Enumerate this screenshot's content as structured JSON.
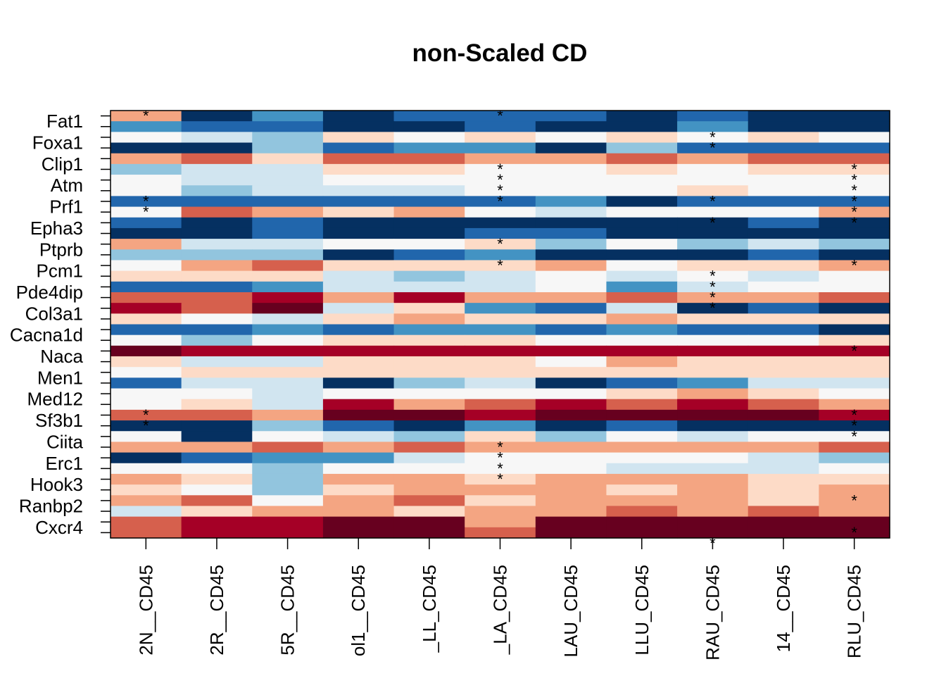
{
  "chart_data": {
    "type": "heatmap",
    "title": "non-Scaled CD",
    "ylabels": [
      "Fat1",
      "Foxa1",
      "Clip1",
      "Atm",
      "Prf1",
      "Epha3",
      "Ptprb",
      "Pcm1",
      "Pde4dip",
      "Col3a1",
      "Cacna1d",
      "Naca",
      "Men1",
      "Med12",
      "Sf3b1",
      "Ciita",
      "Erc1",
      "Hook3",
      "Ranbp2",
      "Cxcr4"
    ],
    "xlabels": [
      "2N__CD45",
      "2R__CD45",
      "5R__CD45",
      "ol1__CD45",
      "_LL_CD45",
      "_LA_CD45",
      "LAU_CD45",
      "LLU_CD45",
      "RAU_CD45",
      "14__CD45",
      "RLU_CD45"
    ],
    "n_rows": 40,
    "palette": [
      "#67001f",
      "#a50026",
      "#d6604d",
      "#f4a582",
      "#fddbc7",
      "#f7f7f7",
      "#d1e5f0",
      "#92c5de",
      "#4393c3",
      "#2166ac",
      "#053061"
    ],
    "values": [
      [
        3,
        10,
        8,
        10,
        9,
        9,
        9,
        10,
        9,
        10,
        10
      ],
      [
        8,
        9,
        9,
        10,
        10,
        9,
        10,
        10,
        8,
        10,
        10
      ],
      [
        5,
        6,
        7,
        4,
        5,
        4,
        5,
        4,
        5,
        4,
        5
      ],
      [
        10,
        10,
        7,
        9,
        8,
        8,
        10,
        7,
        9,
        9,
        9
      ],
      [
        3,
        2,
        4,
        2,
        2,
        3,
        3,
        2,
        3,
        2,
        2
      ],
      [
        7,
        6,
        6,
        4,
        4,
        5,
        5,
        4,
        5,
        4,
        4
      ],
      [
        5,
        6,
        6,
        5,
        5,
        5,
        5,
        5,
        5,
        5,
        5
      ],
      [
        5,
        7,
        6,
        6,
        6,
        5,
        5,
        5,
        4,
        5,
        5
      ],
      [
        9,
        9,
        9,
        9,
        9,
        9,
        8,
        10,
        9,
        9,
        9
      ],
      [
        5,
        2,
        3,
        4,
        3,
        5,
        6,
        5,
        5,
        5,
        3
      ],
      [
        9,
        10,
        9,
        10,
        10,
        10,
        10,
        10,
        10,
        9,
        10
      ],
      [
        10,
        10,
        9,
        10,
        10,
        9,
        9,
        10,
        10,
        10,
        10
      ],
      [
        3,
        6,
        6,
        5,
        5,
        4,
        7,
        5,
        7,
        6,
        7
      ],
      [
        7,
        7,
        7,
        10,
        9,
        8,
        10,
        10,
        10,
        9,
        10
      ],
      [
        5,
        3,
        2,
        4,
        4,
        4,
        3,
        5,
        4,
        4,
        3
      ],
      [
        4,
        4,
        4,
        6,
        7,
        6,
        5,
        6,
        5,
        6,
        5
      ],
      [
        9,
        9,
        8,
        6,
        6,
        6,
        5,
        8,
        6,
        5,
        5
      ],
      [
        2,
        2,
        1,
        3,
        1,
        3,
        3,
        2,
        3,
        3,
        2
      ],
      [
        1,
        2,
        0,
        6,
        4,
        8,
        9,
        6,
        10,
        9,
        10
      ],
      [
        4,
        5,
        6,
        4,
        3,
        4,
        4,
        3,
        4,
        4,
        4
      ],
      [
        9,
        9,
        8,
        9,
        8,
        8,
        9,
        8,
        9,
        9,
        10
      ],
      [
        5,
        7,
        5,
        4,
        4,
        4,
        5,
        5,
        5,
        5,
        4
      ],
      [
        0,
        1,
        1,
        1,
        1,
        1,
        1,
        1,
        1,
        1,
        1
      ],
      [
        4,
        6,
        6,
        4,
        4,
        4,
        5,
        3,
        4,
        4,
        4
      ],
      [
        5,
        4,
        4,
        4,
        4,
        4,
        4,
        4,
        4,
        4,
        4
      ],
      [
        9,
        6,
        6,
        10,
        7,
        6,
        10,
        9,
        8,
        6,
        6
      ],
      [
        5,
        5,
        6,
        5,
        5,
        5,
        5,
        4,
        3,
        4,
        5
      ],
      [
        5,
        4,
        6,
        1,
        3,
        2,
        1,
        2,
        1,
        2,
        3
      ],
      [
        2,
        2,
        3,
        0,
        0,
        1,
        0,
        0,
        0,
        0,
        1
      ],
      [
        10,
        10,
        7,
        9,
        10,
        8,
        10,
        9,
        10,
        10,
        10
      ],
      [
        5,
        10,
        5,
        6,
        7,
        4,
        7,
        5,
        6,
        5,
        5
      ],
      [
        3,
        3,
        2,
        3,
        2,
        3,
        3,
        3,
        3,
        3,
        2
      ],
      [
        10,
        9,
        8,
        8,
        6,
        5,
        5,
        5,
        5,
        6,
        7
      ],
      [
        5,
        5,
        7,
        5,
        5,
        5,
        5,
        6,
        6,
        6,
        5
      ],
      [
        3,
        4,
        7,
        3,
        3,
        4,
        3,
        3,
        3,
        4,
        4
      ],
      [
        4,
        5,
        7,
        4,
        3,
        3,
        3,
        4,
        3,
        4,
        3
      ],
      [
        3,
        2,
        5,
        3,
        2,
        4,
        3,
        3,
        3,
        4,
        3
      ],
      [
        6,
        4,
        3,
        3,
        4,
        3,
        3,
        2,
        3,
        2,
        3
      ],
      [
        2,
        1,
        1,
        0,
        0,
        3,
        0,
        0,
        0,
        0,
        0
      ],
      [
        2,
        1,
        1,
        0,
        0,
        2,
        0,
        0,
        0,
        0,
        0
      ]
    ],
    "stars": [
      [
        0,
        0
      ],
      [
        0,
        5
      ],
      [
        2,
        8
      ],
      [
        3,
        8
      ],
      [
        5,
        5
      ],
      [
        5,
        10
      ],
      [
        6,
        5
      ],
      [
        6,
        10
      ],
      [
        7,
        5
      ],
      [
        7,
        10
      ],
      [
        8,
        5
      ],
      [
        8,
        10
      ],
      [
        8,
        0
      ],
      [
        9,
        0
      ],
      [
        8,
        8
      ],
      [
        9,
        10
      ],
      [
        10,
        10
      ],
      [
        10,
        8
      ],
      [
        12,
        5
      ],
      [
        14,
        5
      ],
      [
        14,
        10
      ],
      [
        15,
        8
      ],
      [
        16,
        8
      ],
      [
        17,
        8
      ],
      [
        18,
        8
      ],
      [
        22,
        10
      ],
      [
        28,
        0
      ],
      [
        28,
        10
      ],
      [
        29,
        0
      ],
      [
        29,
        10
      ],
      [
        30,
        10
      ],
      [
        31,
        5
      ],
      [
        32,
        5
      ],
      [
        33,
        5
      ],
      [
        34,
        5
      ],
      [
        36,
        10
      ],
      [
        39,
        10
      ],
      [
        40,
        8
      ]
    ]
  }
}
